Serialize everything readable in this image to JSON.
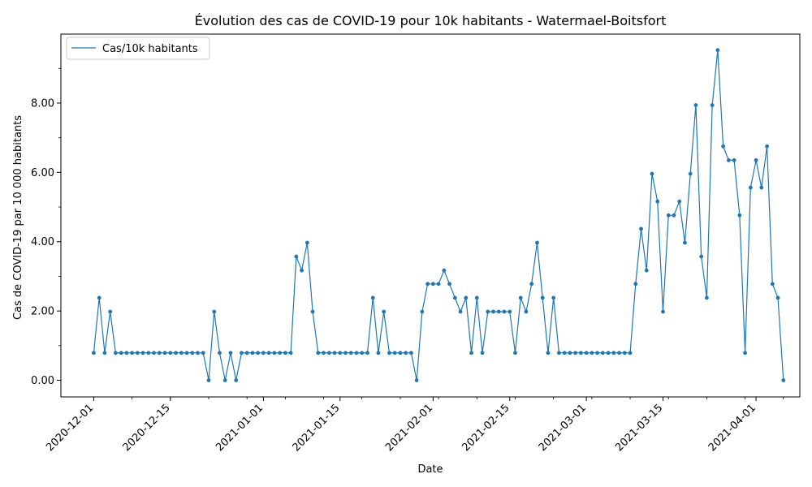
{
  "chart_data": {
    "type": "line",
    "title": "Évolution des cas de COVID-19 pour 10k habitants - Watermael-Boitsfort",
    "xlabel": "Date",
    "ylabel": "Cas de COVID-19 par 10 000 habitants",
    "x_start": "2020-12-01",
    "x_end": "2021-04-04",
    "xlim": [
      "2020-11-25",
      "2021-04-09"
    ],
    "ylim": [
      -0.48,
      9.99
    ],
    "x_ticks": [
      "2020-12-01",
      "2020-12-15",
      "2021-01-01",
      "2021-01-15",
      "2021-02-01",
      "2021-02-15",
      "2021-03-01",
      "2021-03-15",
      "2021-04-01"
    ],
    "y_ticks": [
      "0.00",
      "2.00",
      "4.00",
      "6.00",
      "8.00"
    ],
    "legend_position": "top-left",
    "grid": false,
    "series": [
      {
        "name": "Cas/10k habitants",
        "color": "#1f77b4",
        "values": [
          0.79,
          2.38,
          0.79,
          1.98,
          0.79,
          0.79,
          0.79,
          0.79,
          0.79,
          0.79,
          0.79,
          0.79,
          0.79,
          0.79,
          0.79,
          0.79,
          0.79,
          0.79,
          0.79,
          0.79,
          0.79,
          0.0,
          1.98,
          0.79,
          0.0,
          0.79,
          0.0,
          0.79,
          0.79,
          0.79,
          0.79,
          0.79,
          0.79,
          0.79,
          0.79,
          0.79,
          0.79,
          3.57,
          3.17,
          3.97,
          1.98,
          0.79,
          0.79,
          0.79,
          0.79,
          0.79,
          0.79,
          0.79,
          0.79,
          0.79,
          0.79,
          2.38,
          0.79,
          1.98,
          0.79,
          0.79,
          0.79,
          0.79,
          0.79,
          0.0,
          1.98,
          2.78,
          2.78,
          2.78,
          3.17,
          2.78,
          2.38,
          1.98,
          2.38,
          0.79,
          2.38,
          0.79,
          1.98,
          1.98,
          1.98,
          1.98,
          1.98,
          0.79,
          2.38,
          1.98,
          2.78,
          3.97,
          2.38,
          0.79,
          2.38,
          0.79,
          0.79,
          0.79,
          0.79,
          0.79,
          0.79,
          0.79,
          0.79,
          0.79,
          0.79,
          0.79,
          0.79,
          0.79,
          0.79,
          2.78,
          4.37,
          3.17,
          5.96,
          5.16,
          1.98,
          4.76,
          4.76,
          5.16,
          3.97,
          5.96,
          7.94,
          3.57,
          2.38,
          7.94,
          9.53,
          6.75,
          6.35,
          6.35,
          4.76,
          0.79,
          5.56,
          6.35,
          5.56,
          6.75,
          2.78,
          2.38,
          0.0
        ]
      }
    ]
  }
}
